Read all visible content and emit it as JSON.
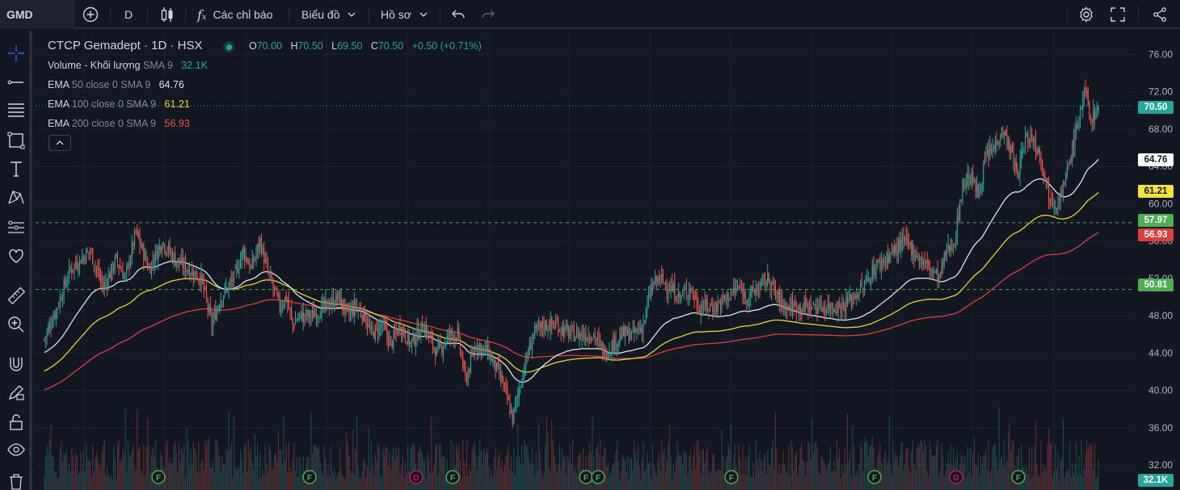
{
  "toolbar": {
    "symbol": "GMD",
    "interval": "D",
    "indicators_label": "Các chỉ báo",
    "chart_label": "Biểu đồ",
    "profile_label": "Hồ sơ"
  },
  "legend": {
    "title": "CTCP Gemadept · 1D · HSX",
    "ohlc": {
      "o_key": "O",
      "o_val": "70.00",
      "h_key": "H",
      "h_val": "70.50",
      "l_key": "L",
      "l_val": "69.50",
      "c_key": "C",
      "c_val": "70.50",
      "change": "+0.50 (+0.71%)"
    },
    "volume": {
      "name": "Volume - Khối lượng",
      "params": "SMA 9",
      "value": "32.1K"
    },
    "ema50": {
      "name": "EMA",
      "params": "50 close 0 SMA 9",
      "value": "64.76"
    },
    "ema100": {
      "name": "EMA",
      "params": "100 close 0 SMA 9",
      "value": "61.21"
    },
    "ema200": {
      "name": "EMA",
      "params": "200 close 0 SMA 9",
      "value": "56.93"
    }
  },
  "price_badges": {
    "last": "70.50",
    "ema50": "64.76",
    "ema100": "61.21",
    "line_upper": "57.97",
    "ema200": "56.93",
    "line_lower": "50.81",
    "volume": "32.1K"
  },
  "colors": {
    "up": "#26a69a",
    "down": "#ef5350",
    "ema50": "#e0e3eb",
    "ema100": "#e5d43b",
    "ema200": "#e03c3c",
    "hline": "#4caf50",
    "earnings_f": "#4caf50",
    "dividend_d": "#c2185b"
  },
  "chart_data": {
    "type": "candlestick",
    "title": "CTCP Gemadept · 1D · HSX",
    "y_ticks": [
      "76.00",
      "72.00",
      "68.00",
      "64.00",
      "60.00",
      "56.00",
      "52.00",
      "48.00",
      "44.00",
      "40.00",
      "36.00",
      "32.00"
    ],
    "ylim": [
      29.5,
      77.5
    ],
    "horizontal_lines": [
      57.97,
      50.81
    ],
    "last_price": 70.5,
    "ema50_last": 64.76,
    "ema100_last": 61.21,
    "ema200_last": 56.93,
    "price_path": [
      [
        0,
        45.5
      ],
      [
        10,
        49
      ],
      [
        20,
        53
      ],
      [
        35,
        55
      ],
      [
        45,
        51
      ],
      [
        55,
        54
      ],
      [
        62,
        52
      ],
      [
        70,
        57
      ],
      [
        80,
        53
      ],
      [
        90,
        56
      ],
      [
        100,
        54
      ],
      [
        110,
        53
      ],
      [
        120,
        52
      ],
      [
        128,
        47
      ],
      [
        135,
        50
      ],
      [
        145,
        52
      ],
      [
        152,
        55
      ],
      [
        158,
        53
      ],
      [
        165,
        56
      ],
      [
        170,
        53
      ],
      [
        175,
        51
      ],
      [
        180,
        49
      ],
      [
        185,
        50
      ],
      [
        190,
        47
      ],
      [
        195,
        48
      ],
      [
        205,
        48
      ],
      [
        215,
        49
      ],
      [
        225,
        50
      ],
      [
        232,
        48
      ],
      [
        238,
        49
      ],
      [
        245,
        48
      ],
      [
        250,
        46
      ],
      [
        258,
        47
      ],
      [
        265,
        45
      ],
      [
        272,
        47
      ],
      [
        280,
        45
      ],
      [
        290,
        47
      ],
      [
        300,
        44
      ],
      [
        310,
        46
      ],
      [
        316,
        46
      ],
      [
        322,
        41
      ],
      [
        330,
        45
      ],
      [
        340,
        44
      ],
      [
        350,
        41
      ],
      [
        358,
        37
      ],
      [
        366,
        42
      ],
      [
        374,
        46
      ],
      [
        382,
        47
      ],
      [
        392,
        47
      ],
      [
        402,
        46
      ],
      [
        412,
        46
      ],
      [
        420,
        46
      ],
      [
        428,
        44
      ],
      [
        435,
        45
      ],
      [
        442,
        46
      ],
      [
        450,
        46
      ],
      [
        458,
        47
      ],
      [
        464,
        51
      ],
      [
        470,
        52
      ],
      [
        478,
        51
      ],
      [
        486,
        50
      ],
      [
        494,
        51
      ],
      [
        500,
        49
      ],
      [
        506,
        49
      ],
      [
        514,
        49
      ],
      [
        522,
        50
      ],
      [
        530,
        51
      ],
      [
        538,
        50
      ],
      [
        546,
        51
      ],
      [
        554,
        52
      ],
      [
        560,
        50
      ],
      [
        566,
        49
      ],
      [
        572,
        49
      ],
      [
        580,
        49
      ],
      [
        590,
        49
      ],
      [
        600,
        49
      ],
      [
        610,
        49
      ],
      [
        618,
        50
      ],
      [
        626,
        51
      ],
      [
        634,
        53
      ],
      [
        642,
        54
      ],
      [
        650,
        55
      ],
      [
        658,
        56
      ],
      [
        664,
        55
      ],
      [
        670,
        54
      ],
      [
        678,
        53
      ],
      [
        684,
        52
      ],
      [
        690,
        55
      ],
      [
        696,
        56
      ],
      [
        702,
        62
      ],
      [
        708,
        63
      ],
      [
        714,
        61
      ],
      [
        720,
        65
      ],
      [
        726,
        66
      ],
      [
        732,
        68
      ],
      [
        738,
        66
      ],
      [
        744,
        63
      ],
      [
        750,
        67
      ],
      [
        756,
        67
      ],
      [
        762,
        65
      ],
      [
        768,
        61
      ],
      [
        774,
        60
      ],
      [
        780,
        62
      ],
      [
        786,
        66
      ],
      [
        792,
        70
      ],
      [
        796,
        72
      ],
      [
        800,
        69
      ],
      [
        806,
        70.5
      ]
    ],
    "events": [
      "F",
      "F",
      "D",
      "F",
      "F",
      "F",
      "F",
      "F",
      "D",
      "F"
    ],
    "volume_last": "32.1K"
  }
}
